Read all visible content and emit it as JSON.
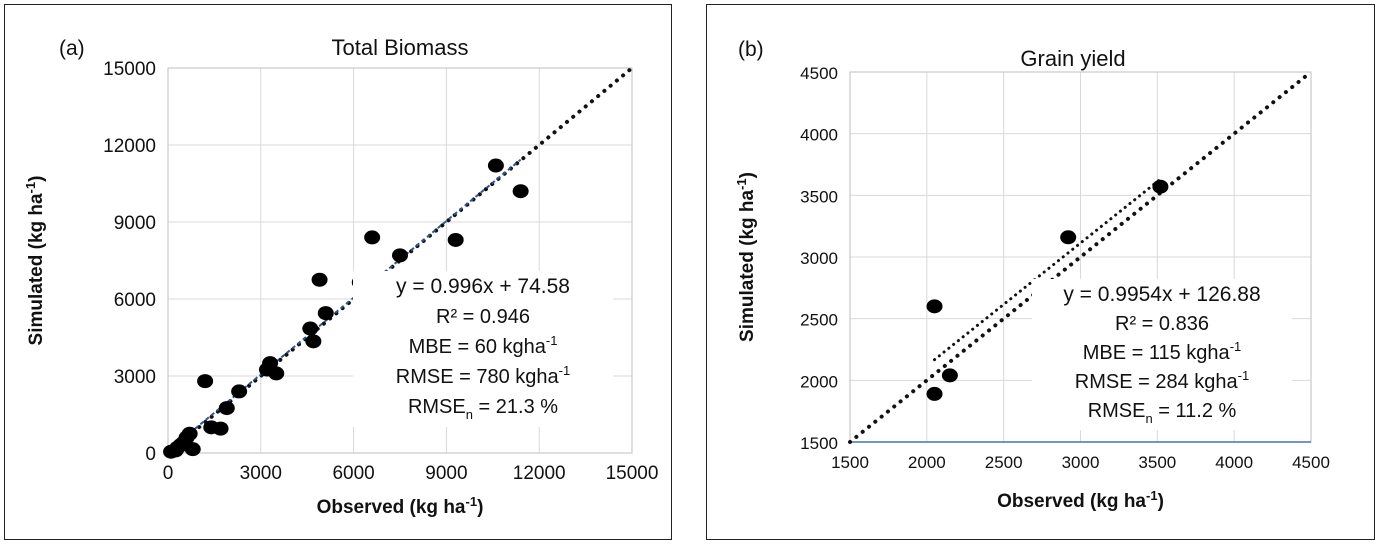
{
  "chart_data": [
    {
      "type": "scatter",
      "panel_label": "(a)",
      "title": "Total Biomass",
      "xlabel": "Observed (kg ha",
      "ylabel": "Simulated (kg ha",
      "unit_exponent": "-1",
      "unit_close": ")",
      "xlim": [
        0,
        15000
      ],
      "ylim": [
        0,
        15000
      ],
      "xticks": [
        "0",
        "3000",
        "6000",
        "9000",
        "12000",
        "15000"
      ],
      "yticks": [
        "0",
        "3000",
        "6000",
        "9000",
        "12000",
        "15000"
      ],
      "grid": true,
      "points": [
        [
          100,
          50
        ],
        [
          250,
          100
        ],
        [
          300,
          200
        ],
        [
          400,
          300
        ],
        [
          500,
          400
        ],
        [
          600,
          600
        ],
        [
          700,
          750
        ],
        [
          800,
          150
        ],
        [
          1200,
          2800
        ],
        [
          1400,
          1000
        ],
        [
          1700,
          950
        ],
        [
          1900,
          1750
        ],
        [
          2300,
          2400
        ],
        [
          3200,
          3250
        ],
        [
          3300,
          3500
        ],
        [
          3500,
          3100
        ],
        [
          4600,
          4850
        ],
        [
          4700,
          4350
        ],
        [
          4900,
          6750
        ],
        [
          5100,
          5450
        ],
        [
          6200,
          6650
        ],
        [
          6600,
          8400
        ],
        [
          6900,
          5600
        ],
        [
          7500,
          7700
        ],
        [
          9300,
          8300
        ],
        [
          10600,
          11200
        ],
        [
          11400,
          10200
        ]
      ],
      "trendline": {
        "slope": 0.996,
        "intercept": 74.58,
        "x_range": [
          0,
          11400
        ]
      },
      "one_to_one": {
        "x_range": [
          0,
          15000
        ]
      },
      "stats": {
        "equation": "y = 0.996x + 74.58",
        "r2": "R² = 0.946",
        "mbe": "MBE = 60 kgha",
        "mbe_exp": "-1",
        "rmse": "RMSE = 780 kgha",
        "rmse_exp": "-1",
        "rmsen_pre": "RMSE",
        "rmsen_sub": "n",
        "rmsen_post": " = 21.3 %"
      }
    },
    {
      "type": "scatter",
      "panel_label": "(b)",
      "title": "Grain yield",
      "xlabel": "Observed (kg ha",
      "ylabel": "Simulated  (kg ha",
      "unit_exponent": "-1",
      "unit_close": ")",
      "xlim": [
        1500,
        4500
      ],
      "ylim": [
        1500,
        4500
      ],
      "xticks": [
        "1500",
        "2000",
        "2500",
        "3000",
        "3500",
        "4000",
        "4500"
      ],
      "yticks": [
        "1500",
        "2000",
        "2500",
        "3000",
        "3500",
        "4000",
        "4500"
      ],
      "grid": true,
      "points": [
        [
          2050,
          2600
        ],
        [
          2050,
          1890
        ],
        [
          2150,
          2040
        ],
        [
          2920,
          3160
        ],
        [
          3520,
          3570
        ]
      ],
      "trendline": {
        "slope": 0.9954,
        "intercept": 126.88,
        "x_range": [
          2050,
          3520
        ]
      },
      "one_to_one": {
        "x_range": [
          1500,
          4500
        ]
      },
      "stats": {
        "equation": "y = 0.9954x + 126.88",
        "r2": "R² = 0.836",
        "mbe": "MBE = 115 kgha",
        "mbe_exp": "-1",
        "rmse": "RMSE = 284 kgha",
        "rmse_exp": "-1",
        "rmsen_pre": "RMSE",
        "rmsen_sub": "n",
        "rmsen_post": " = 11.2 %"
      }
    }
  ]
}
